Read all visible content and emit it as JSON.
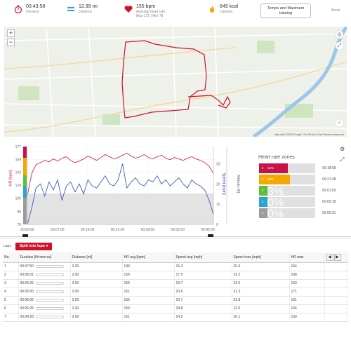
{
  "header": {
    "duration_value": "00:43:58",
    "duration_label": "Duration",
    "distance_value": "12.99 mi",
    "distance_label": "Distance",
    "hr_value": "155 bpm",
    "hr_label": "Average heart rate",
    "hr_maxmin": "Max 171 | Min 78",
    "cal_value": "649 kcal",
    "cal_label": "Calories",
    "training_line1": "Tempo and Maximum",
    "training_line2": "training",
    "more_label": "More"
  },
  "map": {
    "zoom_in": "+",
    "zoom_out": "−",
    "attribution": "Map data ©2020 Google  2 km  Terms of Use  Report a map error"
  },
  "chart_data": {
    "type": "line",
    "xlabel": "",
    "x_ticks": [
      "00:00:00",
      "00:07:00",
      "00:14:00",
      "00:21:00",
      "00:28:00",
      "00:35:00",
      "00:42:00"
    ],
    "hr_axis": {
      "label": "HR [bpm]",
      "ticks": [
        70,
        88,
        106,
        124,
        142,
        159,
        177
      ]
    },
    "speed_axis": {
      "label": "Speed [mph]",
      "ticks": [
        0,
        10,
        20,
        30
      ]
    },
    "altitude_axis": {
      "label": "Altitude [ft]"
    },
    "series": [
      {
        "name": "HR",
        "color": "#d0112b",
        "values": [
          110,
          140,
          152,
          155,
          158,
          156,
          160,
          157,
          161,
          163,
          158,
          155,
          157,
          160,
          164,
          161,
          158,
          162,
          166,
          163,
          160,
          162,
          165,
          168,
          164,
          161,
          163,
          166,
          162,
          160,
          163,
          165,
          161,
          159,
          162,
          160,
          158,
          161,
          163,
          160,
          158,
          155,
          150,
          140
        ]
      },
      {
        "name": "Speed",
        "color": "#2b49b5",
        "values": [
          0,
          8,
          18,
          20,
          14,
          21,
          17,
          22,
          12,
          19,
          21,
          16,
          20,
          15,
          22,
          19,
          18,
          21,
          24,
          20,
          19,
          22,
          30,
          18,
          21,
          23,
          20,
          19,
          22,
          21,
          24,
          20,
          22,
          19,
          21,
          23,
          20,
          18,
          22,
          20,
          19,
          17,
          12,
          5
        ]
      },
      {
        "name": "Altitude",
        "color": "#bdbdbd",
        "values": [
          15,
          15,
          15,
          15,
          15,
          15,
          15,
          15,
          15,
          15,
          15,
          15,
          15,
          15,
          15,
          15,
          15,
          15,
          15,
          15,
          15,
          15,
          15,
          15,
          15,
          15,
          15,
          15,
          15,
          15,
          15,
          15,
          15,
          15,
          15,
          15,
          15,
          15,
          15,
          15,
          15,
          15,
          15,
          15
        ]
      }
    ],
    "hr_zones": {
      "title": "Heart rate zones",
      "zones": [
        {
          "num": "5",
          "pct": "44%",
          "fraction": 0.44,
          "time": "00:18:58",
          "color": "#c6124b"
        },
        {
          "num": "4",
          "pct": "48%",
          "fraction": 0.48,
          "time": "00:21:38",
          "color": "#f6a800"
        },
        {
          "num": "3",
          "pct": "3%",
          "fraction": 0.03,
          "time": "00:01:59",
          "color": "#5bbf3a"
        },
        {
          "num": "2",
          "pct": "0%",
          "fraction": 0.0,
          "time": "00:00:18",
          "color": "#27a5d6"
        },
        {
          "num": "1",
          "pct": "0%",
          "fraction": 0.0,
          "time": "00:00:31",
          "color": "#9c9c9c"
        }
      ]
    }
  },
  "laps": {
    "tab_label": "Laps",
    "split_label": "Split into laps",
    "columns": [
      "No.",
      "Duration [hh:mm:ss]",
      "Distance [mi]",
      "HR avg [bpm]",
      "Speed avg [mph]",
      "Speed max [mph]",
      "HR max"
    ],
    "rows": [
      [
        "1",
        "00:07:50",
        "2.00",
        "139",
        "15.3",
        "20.3",
        "164"
      ],
      [
        "2",
        "00:06:51",
        "2.00",
        "159",
        "17.5",
        "22.2",
        "168"
      ],
      [
        "3",
        "00:06:25",
        "2.00",
        "159",
        "18.7",
        "22.6",
        "163"
      ],
      [
        "4",
        "00:05:50",
        "2.00",
        "161",
        "20.6",
        "31.3",
        "171"
      ],
      [
        "5",
        "00:06:05",
        "2.00",
        "155",
        "19.7",
        "23.8",
        "161"
      ],
      [
        "6",
        "00:06:25",
        "2.00",
        "159",
        "18.8",
        "22.5",
        "166"
      ],
      [
        "7",
        "00:04:28",
        "0.99",
        "151",
        "14.2",
        "20.1",
        "159"
      ]
    ]
  }
}
